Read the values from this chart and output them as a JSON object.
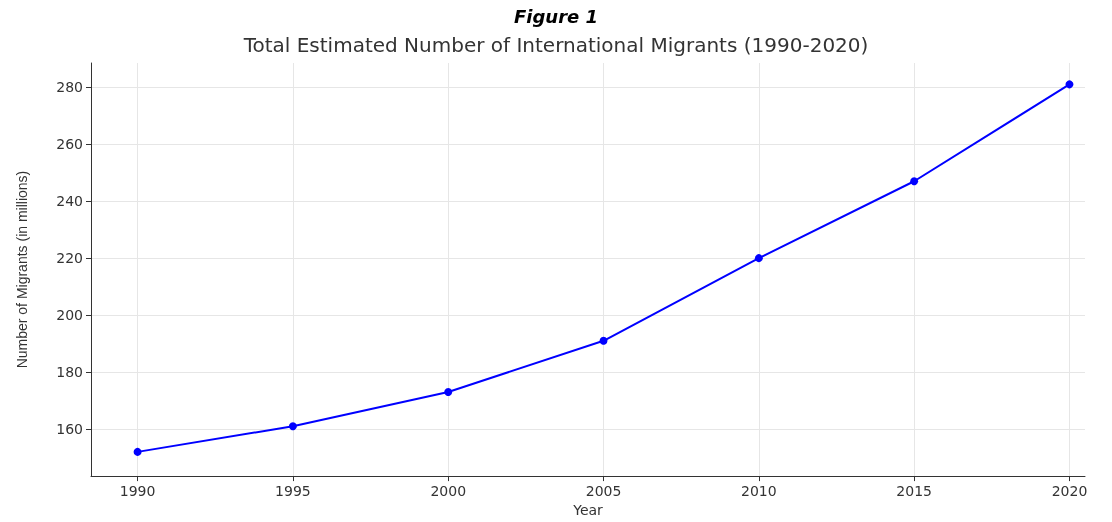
{
  "chart_data": {
    "type": "line",
    "title": "Figure 1",
    "subtitle": "Total Estimated Number of International Migrants (1990-2020)",
    "xlabel": "Year",
    "ylabel": "Number of Migrants (in millions)",
    "x": [
      1990,
      1995,
      2000,
      2005,
      2010,
      2015,
      2020
    ],
    "series": [
      {
        "color": "#0000ff",
        "values": [
          152,
          161,
          173,
          191,
          220,
          247,
          281
        ]
      }
    ],
    "xlim": [
      1988.5,
      2020.5
    ],
    "xticks": [
      1990,
      1995,
      2000,
      2005,
      2010,
      2015,
      2020
    ],
    "ylim": [
      143.5,
      288.5
    ],
    "yticks": [
      160,
      180,
      200,
      220,
      240,
      260,
      280
    ],
    "grid": true,
    "marker": "circle",
    "line_style": "solid"
  }
}
